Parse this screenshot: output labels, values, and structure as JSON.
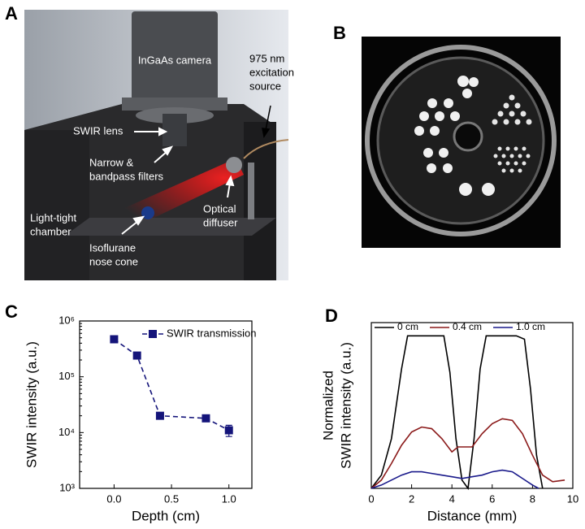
{
  "panels": {
    "a": "A",
    "b": "B",
    "c": "C",
    "d": "D"
  },
  "panel_a": {
    "labels": [
      {
        "lines": [
          "InGaAs camera"
        ]
      },
      {
        "lines": [
          "975 nm",
          "excitation",
          "source"
        ]
      },
      {
        "lines": [
          "SWIR lens"
        ]
      },
      {
        "lines": [
          "Narrow &",
          "bandpass filters"
        ]
      },
      {
        "lines": [
          "Light-tight",
          "chamber"
        ]
      },
      {
        "lines": [
          "Optical",
          "diffuser"
        ]
      },
      {
        "lines": [
          "Isoflurane",
          "nose cone"
        ]
      }
    ]
  },
  "chart_data": [
    {
      "type": "line",
      "log_y": true,
      "x_label": "Depth (cm)",
      "y_label": "SWIR intensity (a.u.)",
      "x": [
        0,
        0.2,
        0.4,
        0.8,
        1.0
      ],
      "series": [
        {
          "name": "SWIR transmission",
          "color": "#14147a",
          "dash": true,
          "marker": "square",
          "values": [
            470000,
            240000,
            20000,
            18000,
            11000
          ],
          "errors": [
            30000,
            20000,
            1500,
            1500,
            2500
          ]
        }
      ],
      "xlim": [
        -0.3,
        1.2
      ],
      "xticks": [
        {
          "value": 0,
          "label": "0.0"
        },
        {
          "value": 0.5,
          "label": "0.5"
        },
        {
          "value": 1.0,
          "label": "1.0"
        }
      ],
      "ylim": [
        1000,
        1000000
      ],
      "yticks": [
        {
          "value": 1000,
          "label": "10³"
        },
        {
          "value": 10000,
          "label": "10⁴"
        },
        {
          "value": 100000,
          "label": "10⁵"
        },
        {
          "value": 1000000,
          "label": "10⁶"
        }
      ],
      "legend": "upper right"
    },
    {
      "type": "line",
      "log_y": false,
      "x_label": "Distance (mm)",
      "y_label": [
        "Normalized",
        "SWIR intensity (a.u.)"
      ],
      "series": [
        {
          "name": "0 cm",
          "color": "#000000",
          "x": [
            0,
            0.5,
            1,
            1.5,
            1.8,
            2.2,
            3,
            3.6,
            3.9,
            4.2,
            4.5,
            4.8,
            5.1,
            5.4,
            5.7,
            6,
            6.5,
            7.2,
            7.6,
            7.9,
            8.2,
            8.5
          ],
          "values": [
            0,
            0.08,
            0.3,
            0.72,
            0.92,
            0.92,
            0.92,
            0.92,
            0.7,
            0.3,
            0.05,
            0,
            0.3,
            0.72,
            0.92,
            0.92,
            0.92,
            0.92,
            0.9,
            0.6,
            0.2,
            0
          ]
        },
        {
          "name": "0.4 cm",
          "color": "#8b1a1a",
          "x": [
            0,
            0.5,
            1,
            1.5,
            2,
            2.5,
            3,
            3.5,
            4,
            4.3,
            4.6,
            5,
            5.5,
            6,
            6.5,
            7,
            7.5,
            8,
            8.5,
            9,
            9.6
          ],
          "values": [
            0,
            0.05,
            0.15,
            0.26,
            0.34,
            0.37,
            0.36,
            0.3,
            0.22,
            0.25,
            0.25,
            0.25,
            0.33,
            0.39,
            0.42,
            0.41,
            0.33,
            0.2,
            0.08,
            0.04,
            0.05
          ]
        },
        {
          "name": "1.0 cm",
          "color": "#1a1a8b",
          "x": [
            0,
            0.5,
            1,
            1.5,
            2,
            2.5,
            3,
            3.5,
            4,
            4.5,
            5,
            5.5,
            6,
            6.5,
            7,
            7.5,
            8,
            8.3
          ],
          "values": [
            0,
            0.02,
            0.05,
            0.08,
            0.1,
            0.1,
            0.09,
            0.08,
            0.07,
            0.06,
            0.07,
            0.08,
            0.1,
            0.11,
            0.1,
            0.06,
            0.02,
            0
          ]
        }
      ],
      "xlim": [
        0,
        10
      ],
      "xticks": [
        0,
        2,
        4,
        6,
        8,
        10
      ],
      "ylim": [
        0,
        1
      ],
      "legend": "top"
    }
  ]
}
